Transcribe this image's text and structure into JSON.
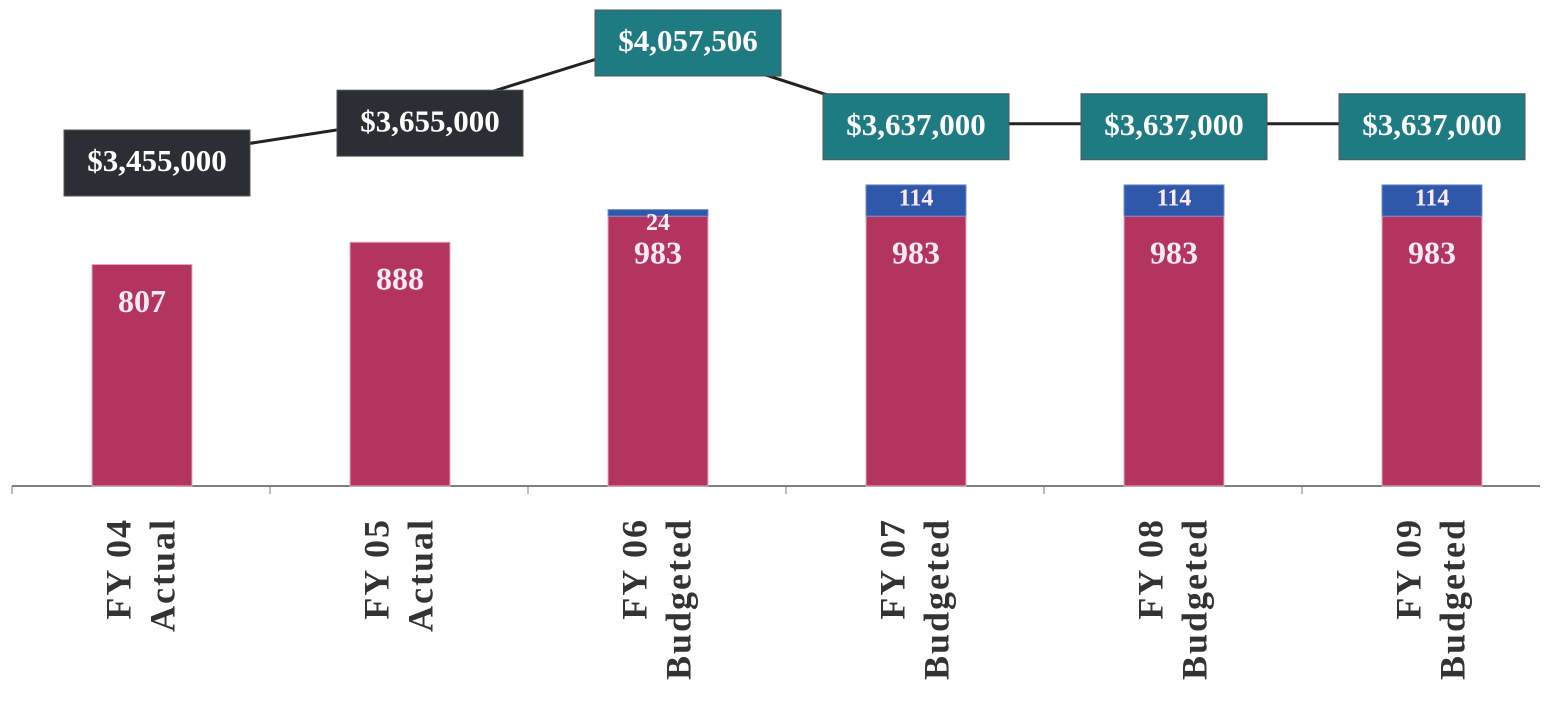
{
  "chart_data": {
    "type": "bar",
    "categories": [
      [
        "FY 04",
        "Actual"
      ],
      [
        "FY 05",
        "Actual"
      ],
      [
        "FY 06",
        "Budgeted"
      ],
      [
        "FY 07",
        "Budgeted"
      ],
      [
        "FY 08",
        "Budgeted"
      ],
      [
        "FY 09",
        "Budgeted"
      ]
    ],
    "series": [
      {
        "color": "#b3345f",
        "values": [
          807,
          888,
          983,
          983,
          983,
          983
        ]
      },
      {
        "color": "#2f58aa",
        "values": [
          null,
          null,
          24,
          114,
          114,
          114
        ]
      }
    ],
    "line": {
      "type": "line",
      "color": "#222222",
      "values": [
        3455000,
        3655000,
        4057506,
        3637000,
        3637000,
        3637000
      ],
      "value_labels": [
        "$3,455,000",
        "$3,655,000",
        "$4,057,506",
        "$3,637,000",
        "$3,637,000",
        "$3,637,000"
      ],
      "label_colors": [
        "#2b2e34",
        "#2b2e34",
        "#1f7b82",
        "#1f7b82",
        "#1f7b82",
        "#1f7b82"
      ]
    }
  }
}
